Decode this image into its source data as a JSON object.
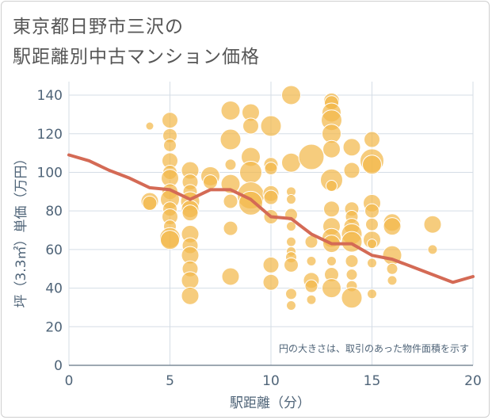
{
  "title": {
    "line1": "東京都日野市三沢の",
    "line2": "駅距離別中古マンション価格"
  },
  "colors": {
    "bubble": "#f2b84b",
    "bubble_stroke": "#ffffff",
    "trend": "#d46a55",
    "grid": "#d5dde6",
    "axis_text": "#4f6478"
  },
  "chart_data": {
    "type": "scatter",
    "xlabel": "駅距離（分）",
    "ylabel": "坪（3.3㎡）単価（万円）",
    "xlim": [
      0,
      20
    ],
    "ylim": [
      0,
      147
    ],
    "x_ticks": [
      "0",
      "5",
      "10",
      "15",
      "20"
    ],
    "y_ticks": [
      "0",
      "20",
      "40",
      "60",
      "80",
      "100",
      "120",
      "140"
    ],
    "x_tick_values": [
      0,
      5,
      10,
      15,
      20
    ],
    "y_tick_values": [
      0,
      20,
      40,
      60,
      80,
      100,
      120,
      140
    ],
    "grid": true,
    "note": "円の大きさは、取引のあった物件面積を示す",
    "points": [
      {
        "x": 4,
        "y": 124,
        "s": 5
      },
      {
        "x": 4,
        "y": 85,
        "s": 11
      },
      {
        "x": 4,
        "y": 84,
        "s": 9
      },
      {
        "x": 5,
        "y": 127,
        "s": 10
      },
      {
        "x": 5,
        "y": 119,
        "s": 9
      },
      {
        "x": 5,
        "y": 114,
        "s": 8
      },
      {
        "x": 5,
        "y": 106,
        "s": 10
      },
      {
        "x": 5,
        "y": 100,
        "s": 9
      },
      {
        "x": 5,
        "y": 97,
        "s": 11
      },
      {
        "x": 5,
        "y": 90,
        "s": 10
      },
      {
        "x": 5,
        "y": 86,
        "s": 12
      },
      {
        "x": 5,
        "y": 81,
        "s": 9
      },
      {
        "x": 5,
        "y": 77,
        "s": 10
      },
      {
        "x": 5,
        "y": 72,
        "s": 8
      },
      {
        "x": 5,
        "y": 66,
        "s": 13
      },
      {
        "x": 5,
        "y": 65,
        "s": 12
      },
      {
        "x": 6,
        "y": 101,
        "s": 11
      },
      {
        "x": 6,
        "y": 95,
        "s": 10
      },
      {
        "x": 6,
        "y": 90,
        "s": 9
      },
      {
        "x": 6,
        "y": 85,
        "s": 12
      },
      {
        "x": 6,
        "y": 81,
        "s": 11
      },
      {
        "x": 6,
        "y": 79,
        "s": 10
      },
      {
        "x": 6,
        "y": 68,
        "s": 11
      },
      {
        "x": 6,
        "y": 62,
        "s": 10
      },
      {
        "x": 6,
        "y": 57,
        "s": 11
      },
      {
        "x": 6,
        "y": 50,
        "s": 10
      },
      {
        "x": 6,
        "y": 44,
        "s": 11
      },
      {
        "x": 6,
        "y": 36,
        "s": 11
      },
      {
        "x": 7,
        "y": 98,
        "s": 12
      },
      {
        "x": 7,
        "y": 95,
        "s": 9
      },
      {
        "x": 8,
        "y": 132,
        "s": 12
      },
      {
        "x": 8,
        "y": 117,
        "s": 13
      },
      {
        "x": 8,
        "y": 104,
        "s": 7
      },
      {
        "x": 8,
        "y": 94,
        "s": 12
      },
      {
        "x": 8,
        "y": 85,
        "s": 9
      },
      {
        "x": 8,
        "y": 71,
        "s": 9
      },
      {
        "x": 8,
        "y": 46,
        "s": 11
      },
      {
        "x": 9,
        "y": 131,
        "s": 11
      },
      {
        "x": 9,
        "y": 124,
        "s": 10
      },
      {
        "x": 9,
        "y": 108,
        "s": 12
      },
      {
        "x": 9,
        "y": 100,
        "s": 14
      },
      {
        "x": 9,
        "y": 88,
        "s": 17
      },
      {
        "x": 9,
        "y": 84,
        "s": 15
      },
      {
        "x": 10,
        "y": 124,
        "s": 13
      },
      {
        "x": 10,
        "y": 104,
        "s": 9
      },
      {
        "x": 10,
        "y": 102,
        "s": 8
      },
      {
        "x": 10,
        "y": 89,
        "s": 10
      },
      {
        "x": 10,
        "y": 87,
        "s": 9
      },
      {
        "x": 10,
        "y": 77,
        "s": 9
      },
      {
        "x": 10,
        "y": 52,
        "s": 10
      },
      {
        "x": 10,
        "y": 43,
        "s": 10
      },
      {
        "x": 11,
        "y": 140,
        "s": 12
      },
      {
        "x": 11,
        "y": 105,
        "s": 12
      },
      {
        "x": 11,
        "y": 90,
        "s": 6
      },
      {
        "x": 11,
        "y": 86,
        "s": 6
      },
      {
        "x": 11,
        "y": 78,
        "s": 8
      },
      {
        "x": 11,
        "y": 72,
        "s": 6
      },
      {
        "x": 11,
        "y": 64,
        "s": 6
      },
      {
        "x": 11,
        "y": 59,
        "s": 6
      },
      {
        "x": 11,
        "y": 56,
        "s": 7
      },
      {
        "x": 11,
        "y": 52,
        "s": 9
      },
      {
        "x": 11,
        "y": 37,
        "s": 7
      },
      {
        "x": 11,
        "y": 31,
        "s": 6
      },
      {
        "x": 12,
        "y": 108,
        "s": 16
      },
      {
        "x": 12,
        "y": 64,
        "s": 8
      },
      {
        "x": 12,
        "y": 54,
        "s": 6
      },
      {
        "x": 12,
        "y": 44,
        "s": 10
      },
      {
        "x": 12,
        "y": 41,
        "s": 8
      },
      {
        "x": 12,
        "y": 34,
        "s": 6
      },
      {
        "x": 13,
        "y": 137,
        "s": 10
      },
      {
        "x": 13,
        "y": 136,
        "s": 9
      },
      {
        "x": 13,
        "y": 131,
        "s": 12
      },
      {
        "x": 13,
        "y": 127,
        "s": 13
      },
      {
        "x": 13,
        "y": 120,
        "s": 12
      },
      {
        "x": 13,
        "y": 112,
        "s": 11
      },
      {
        "x": 13,
        "y": 96,
        "s": 14
      },
      {
        "x": 13,
        "y": 93,
        "s": 7
      },
      {
        "x": 13,
        "y": 81,
        "s": 10
      },
      {
        "x": 13,
        "y": 72,
        "s": 11
      },
      {
        "x": 13,
        "y": 66,
        "s": 12
      },
      {
        "x": 13,
        "y": 63,
        "s": 11
      },
      {
        "x": 13,
        "y": 54,
        "s": 6
      },
      {
        "x": 13,
        "y": 47,
        "s": 9
      },
      {
        "x": 13,
        "y": 40,
        "s": 12
      },
      {
        "x": 14,
        "y": 113,
        "s": 11
      },
      {
        "x": 14,
        "y": 101,
        "s": 10
      },
      {
        "x": 14,
        "y": 81,
        "s": 9
      },
      {
        "x": 14,
        "y": 77,
        "s": 8
      },
      {
        "x": 14,
        "y": 72,
        "s": 10
      },
      {
        "x": 14,
        "y": 68,
        "s": 13
      },
      {
        "x": 14,
        "y": 64,
        "s": 13
      },
      {
        "x": 14,
        "y": 54,
        "s": 8
      },
      {
        "x": 14,
        "y": 47,
        "s": 7
      },
      {
        "x": 14,
        "y": 41,
        "s": 7
      },
      {
        "x": 14,
        "y": 35,
        "s": 13
      },
      {
        "x": 15,
        "y": 117,
        "s": 10
      },
      {
        "x": 15,
        "y": 106,
        "s": 15
      },
      {
        "x": 15,
        "y": 104,
        "s": 12
      },
      {
        "x": 15,
        "y": 84,
        "s": 11
      },
      {
        "x": 15,
        "y": 80,
        "s": 9
      },
      {
        "x": 15,
        "y": 73,
        "s": 8
      },
      {
        "x": 15,
        "y": 65,
        "s": 11
      },
      {
        "x": 15,
        "y": 63,
        "s": 6
      },
      {
        "x": 15,
        "y": 53,
        "s": 6
      },
      {
        "x": 15,
        "y": 37,
        "s": 6
      },
      {
        "x": 16,
        "y": 74,
        "s": 11
      },
      {
        "x": 16,
        "y": 72,
        "s": 11
      },
      {
        "x": 16,
        "y": 57,
        "s": 12
      },
      {
        "x": 16,
        "y": 50,
        "s": 7
      },
      {
        "x": 16,
        "y": 44,
        "s": 6
      },
      {
        "x": 18,
        "y": 73,
        "s": 11
      },
      {
        "x": 18,
        "y": 60,
        "s": 6
      }
    ],
    "trend": {
      "x": [
        0,
        1,
        2,
        3,
        4,
        5,
        6,
        7,
        8,
        9,
        10,
        11,
        12,
        13,
        14,
        15,
        16,
        17,
        18,
        19,
        20
      ],
      "y": [
        109,
        106,
        101,
        97,
        92,
        91,
        86,
        91,
        91,
        86,
        77,
        76,
        68,
        63,
        63,
        57,
        55,
        51,
        47,
        43,
        46
      ]
    }
  }
}
